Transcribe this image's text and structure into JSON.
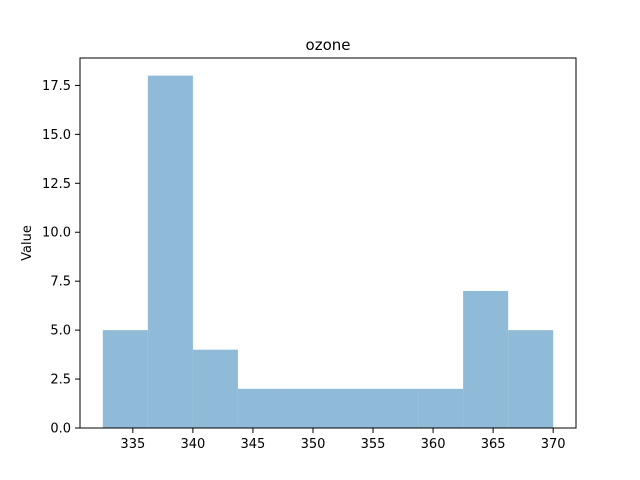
{
  "chart_data": {
    "type": "bar",
    "title": "ozone",
    "xlabel": "",
    "ylabel": "Value",
    "bin_edges": [
      332.5,
      336.25,
      340.0,
      343.75,
      347.5,
      351.25,
      355.0,
      358.75,
      362.5,
      366.25,
      370.0
    ],
    "values": [
      5,
      18,
      4,
      2,
      2,
      2,
      2,
      2,
      7,
      5
    ],
    "xlim": [
      330.6,
      371.9
    ],
    "ylim": [
      0,
      18.9
    ],
    "x_ticks": [
      335,
      340,
      345,
      350,
      355,
      360,
      365,
      370
    ],
    "x_tick_labels": [
      "335",
      "340",
      "345",
      "350",
      "355",
      "360",
      "365",
      "370"
    ],
    "y_ticks": [
      0,
      2.5,
      5,
      7.5,
      10,
      12.5,
      15,
      17.5
    ],
    "y_tick_labels": [
      "0.0",
      "2.5",
      "5.0",
      "7.5",
      "10.0",
      "12.5",
      "15.0",
      "17.5"
    ],
    "bar_color": "#8fbbd9",
    "grid": false,
    "legend": "none"
  }
}
